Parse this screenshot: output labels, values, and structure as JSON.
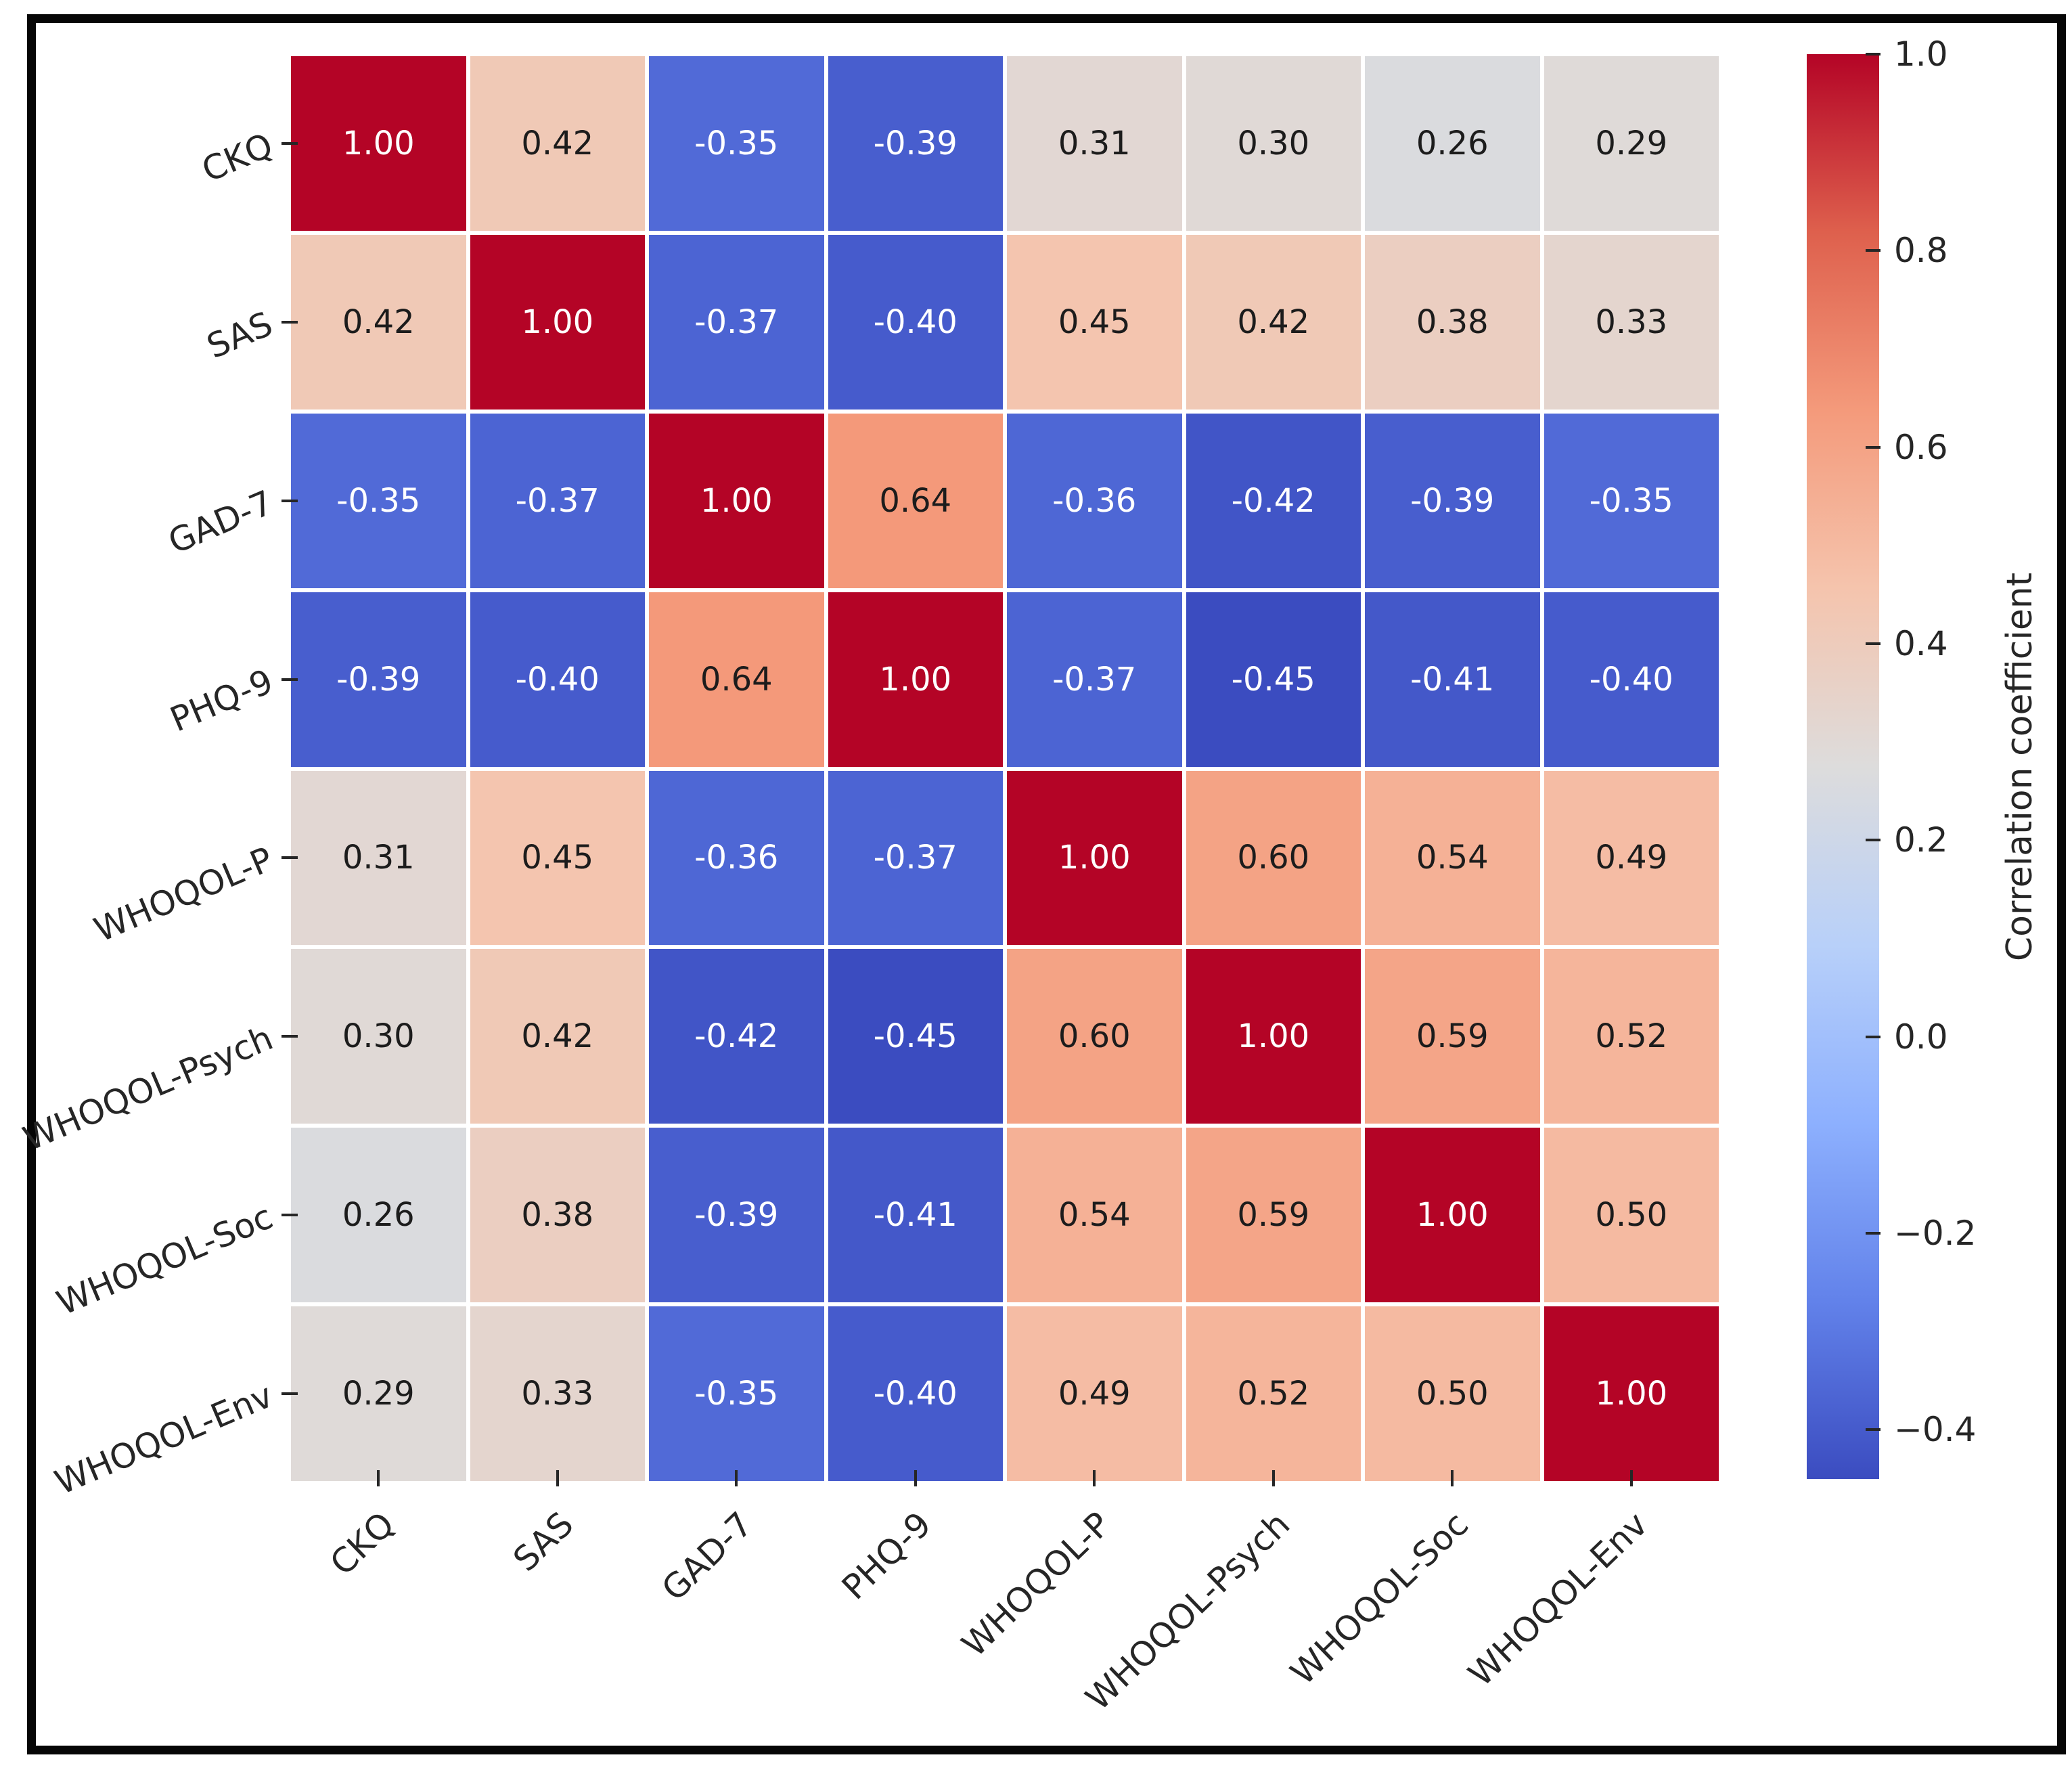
{
  "figure": {
    "background_color": "#ffffff",
    "border_color": "#060606"
  },
  "chart_data": {
    "type": "heatmap",
    "title": "",
    "x_labels": [
      "CKQ",
      "SAS",
      "GAD-7",
      "PHQ-9",
      "WHOQOL-P",
      "WHOQOL-Psych",
      "WHOQOL-Soc",
      "WHOQOL-Env"
    ],
    "y_labels": [
      "CKQ",
      "SAS",
      "GAD-7",
      "PHQ-9",
      "WHOQOL-P",
      "WHOQOL-Psych",
      "WHOQOL-Soc",
      "WHOQOL-Env"
    ],
    "matrix": [
      [
        1.0,
        0.42,
        -0.35,
        -0.39,
        0.31,
        0.3,
        0.26,
        0.29
      ],
      [
        0.42,
        1.0,
        -0.37,
        -0.4,
        0.45,
        0.42,
        0.38,
        0.33
      ],
      [
        -0.35,
        -0.37,
        1.0,
        0.64,
        -0.36,
        -0.42,
        -0.39,
        -0.35
      ],
      [
        -0.39,
        -0.4,
        0.64,
        1.0,
        -0.37,
        -0.45,
        -0.41,
        -0.4
      ],
      [
        0.31,
        0.45,
        -0.36,
        -0.37,
        1.0,
        0.6,
        0.54,
        0.49
      ],
      [
        0.3,
        0.42,
        -0.42,
        -0.45,
        0.6,
        1.0,
        0.59,
        0.52
      ],
      [
        0.26,
        0.38,
        -0.39,
        -0.41,
        0.54,
        0.59,
        1.0,
        0.5
      ],
      [
        0.29,
        0.33,
        -0.35,
        -0.4,
        0.49,
        0.52,
        0.5,
        1.0
      ]
    ],
    "cell_value_decimals": 2,
    "colormap": "coolwarm",
    "vmin": -0.45,
    "vmax": 1.0,
    "grid_line_color": "#ffffff",
    "tick_color": "#262626",
    "text_color": "#262626",
    "legend_position": "right",
    "colorbar": {
      "label": "Correlation coefficient",
      "tick_labels": [
        "1.0",
        "0.8",
        "0.6",
        "0.4",
        "0.2",
        "0.0",
        "−0.2",
        "−0.4"
      ],
      "tick_values": [
        1.0,
        0.8,
        0.6,
        0.4,
        0.2,
        0.0,
        -0.2,
        -0.4
      ]
    }
  }
}
